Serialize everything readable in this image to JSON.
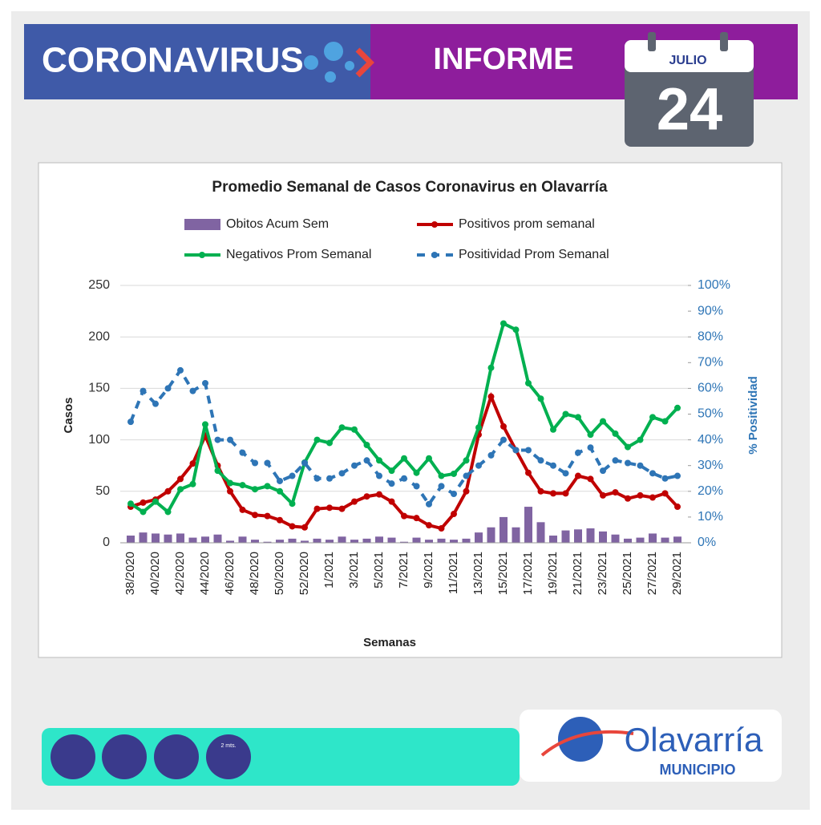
{
  "header": {
    "title": "CORONAVIRUS",
    "subtitle": "INFORME",
    "month": "JULIO",
    "day": "24"
  },
  "footer": {
    "distance": "2 mts.",
    "brand": "Olavarría",
    "brand_sub": "MUNICIPIO"
  },
  "chart_data": {
    "type": "combo",
    "title": "Promedio Semanal de Casos Coronavirus en Olavarría",
    "xlabel": "Semanas",
    "ylabel": "Casos",
    "y2label": "% Positividad",
    "legend": "top",
    "categories": [
      "38/2020",
      null,
      "40/2020",
      null,
      "42/2020",
      null,
      "44/2020",
      null,
      "46/2020",
      null,
      "48/2020",
      null,
      "50/2020",
      null,
      "52/2020",
      null,
      "1/2021",
      null,
      "3/2021",
      null,
      "5/2021",
      null,
      "7/2021",
      null,
      "9/2021",
      null,
      "11/2021",
      null,
      "13/2021",
      null,
      "15/2021",
      null,
      "17/2021",
      null,
      "19/2021",
      null,
      "21/2021",
      null,
      "23/2021",
      null,
      "25/2021",
      null,
      "27/2021",
      null,
      "29/2021"
    ],
    "ylim": [
      0,
      250
    ],
    "yticks": [
      0,
      50,
      100,
      150,
      200,
      250
    ],
    "y2lim": [
      0,
      100
    ],
    "y2ticks": [
      {
        "value": 0,
        "label": "0%"
      },
      {
        "value": 10,
        "label": "10%"
      },
      {
        "value": 20,
        "label": "20%"
      },
      {
        "value": 30,
        "label": "30%"
      },
      {
        "value": 40,
        "label": "40%"
      },
      {
        "value": 50,
        "label": "50%"
      },
      {
        "value": 60,
        "label": "60%"
      },
      {
        "value": 70,
        "label": "70%"
      },
      {
        "value": 80,
        "label": "80%"
      },
      {
        "value": 90,
        "label": "90%"
      },
      {
        "value": 100,
        "label": "100%"
      }
    ],
    "grid": true,
    "series": [
      {
        "name": "Obitos Acum Sem",
        "type": "bar",
        "color": "#8064a2",
        "values": [
          7,
          10,
          9,
          8,
          9,
          5,
          6,
          8,
          2,
          6,
          3,
          1,
          3,
          4,
          2,
          4,
          3,
          6,
          3,
          4,
          6,
          5,
          1,
          5,
          3,
          4,
          3,
          4,
          10,
          15,
          25,
          15,
          35,
          20,
          7,
          12,
          13,
          14,
          11,
          8,
          4,
          5,
          9,
          5,
          6
        ]
      },
      {
        "name": "Positivos prom semanal",
        "type": "line",
        "color": "#c00000",
        "values": [
          35,
          39,
          42,
          50,
          62,
          77,
          104,
          75,
          50,
          32,
          27,
          26,
          22,
          16,
          15,
          33,
          34,
          33,
          40,
          45,
          47,
          40,
          26,
          24,
          17,
          14,
          28,
          50,
          105,
          142,
          113,
          90,
          68,
          50,
          48,
          48,
          65,
          62,
          46,
          49,
          43,
          46,
          44,
          48,
          35
        ]
      },
      {
        "name": "Negativos Prom Semanal",
        "type": "line",
        "color": "#00b050",
        "values": [
          38,
          30,
          40,
          30,
          52,
          57,
          115,
          70,
          58,
          56,
          52,
          55,
          50,
          38,
          78,
          100,
          97,
          112,
          110,
          95,
          80,
          70,
          82,
          68,
          82,
          65,
          67,
          80,
          112,
          170,
          213,
          207,
          155,
          140,
          110,
          125,
          122,
          105,
          118,
          106,
          93,
          100,
          122,
          118,
          131
        ]
      },
      {
        "name": "Positividad Prom Semanal",
        "type": "line",
        "dashed": true,
        "axis": "y2",
        "color": "#2e75b6",
        "values": [
          47,
          59,
          54,
          60,
          67,
          59,
          62,
          40,
          40,
          35,
          31,
          31,
          24,
          26,
          31,
          25,
          25,
          27,
          30,
          32,
          26,
          23,
          25,
          22,
          15,
          22,
          19,
          26,
          30,
          34,
          40,
          36,
          36,
          32,
          30,
          27,
          35,
          37,
          28,
          32,
          31,
          30,
          27,
          25,
          26
        ]
      }
    ]
  }
}
